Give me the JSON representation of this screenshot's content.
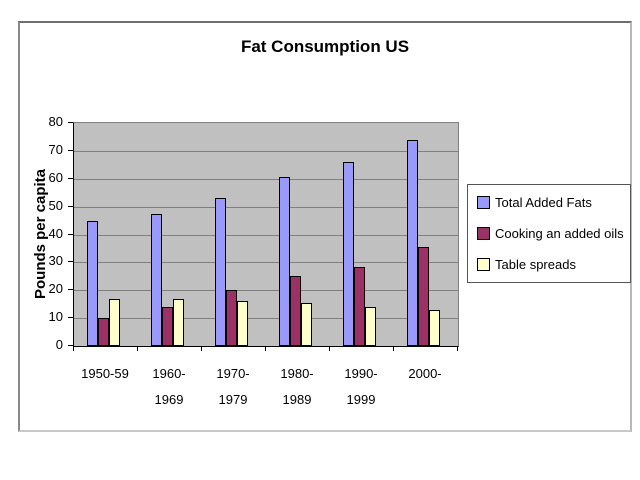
{
  "page": {
    "background": "#FFFFFF"
  },
  "chart_data": {
    "type": "bar",
    "title": "Fat Consumption US",
    "ylabel": "Pounds per capita",
    "xlabel": "",
    "ylim": [
      0,
      80
    ],
    "yticks": [
      0,
      10,
      20,
      30,
      40,
      50,
      60,
      70,
      80
    ],
    "categories": [
      "1950-59",
      "1960-1969",
      "1970-1979",
      "1980-1989",
      "1990-1999",
      "2000-"
    ],
    "category_labels_lines": [
      [
        "1950-59"
      ],
      [
        "1960-",
        "1969"
      ],
      [
        "1970-",
        "1979"
      ],
      [
        "1980-",
        "1989"
      ],
      [
        "1990-",
        "1999"
      ],
      [
        "2000-"
      ]
    ],
    "series": [
      {
        "name": "Total Added Fats",
        "color": "#9999FF",
        "values": [
          45,
          47.5,
          53,
          60.5,
          66,
          74
        ]
      },
      {
        "name": "Cooking an added oils",
        "color": "#993366",
        "values": [
          10,
          14,
          20,
          25,
          28.5,
          35.5
        ]
      },
      {
        "name": "Table spreads",
        "color": "#FFFFCC",
        "values": [
          17,
          17,
          16,
          15.5,
          14,
          13
        ]
      }
    ],
    "legend_position": "right",
    "grid": true,
    "plot_background": "#C0C0C0",
    "gridline_color": "#808080",
    "axis_color": "#000000"
  }
}
